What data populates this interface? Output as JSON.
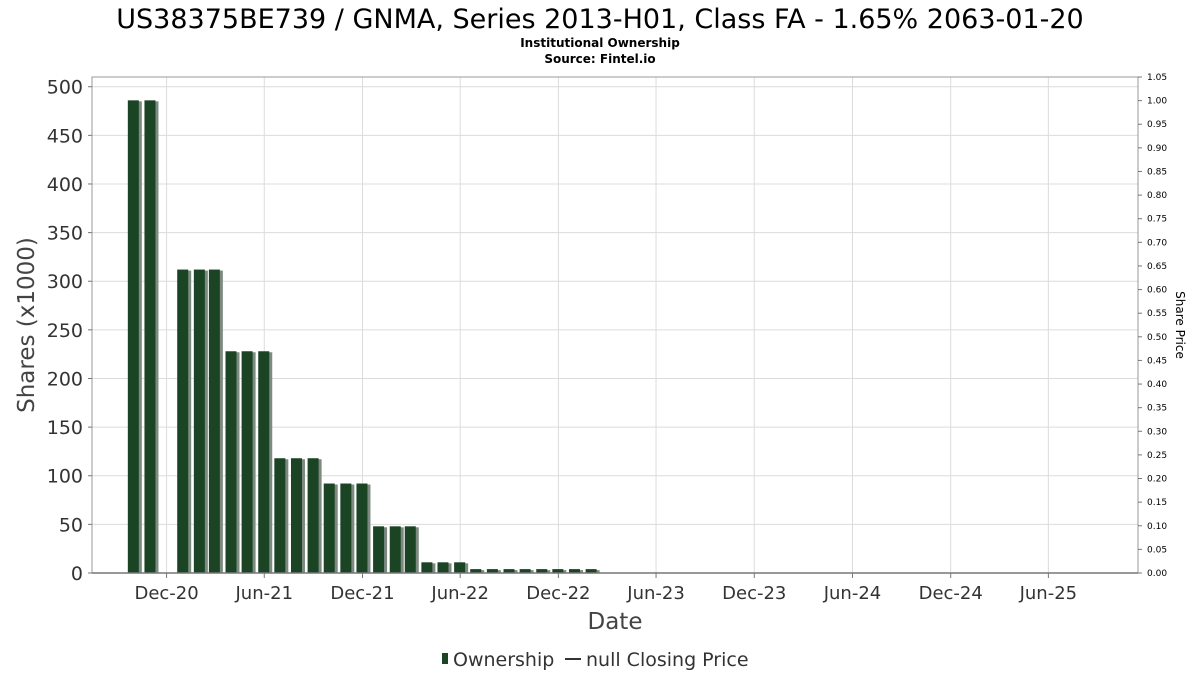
{
  "chart_data": {
    "type": "bar",
    "title": "US38375BE739 / GNMA, Series 2013-H01, Class FA - 1.65% 2063-01-20",
    "subtitle_lines": [
      "Institutional Ownership",
      "Source: Fintel.io"
    ],
    "xlabel": "Date",
    "ylabel": "Shares (x1000)",
    "y2label": "Share Price",
    "ylim": [
      0,
      510
    ],
    "y2lim": [
      0,
      1.05
    ],
    "yticks": [
      0,
      50,
      100,
      150,
      200,
      250,
      300,
      350,
      400,
      450,
      500
    ],
    "y2ticks": [
      "0.00",
      "0.05",
      "0.10",
      "0.15",
      "0.20",
      "0.25",
      "0.30",
      "0.35",
      "0.40",
      "0.45",
      "0.50",
      "0.55",
      "0.60",
      "0.65",
      "0.70",
      "0.75",
      "0.80",
      "0.85",
      "0.90",
      "0.95",
      "1.00",
      "1.05"
    ],
    "xlim": [
      "2020-07-15",
      "2025-11-15"
    ],
    "xticks": [
      {
        "label": "Dec-20",
        "date": "2020-12-01"
      },
      {
        "label": "Jun-21",
        "date": "2021-06-01"
      },
      {
        "label": "Dec-21",
        "date": "2021-12-01"
      },
      {
        "label": "Jun-22",
        "date": "2022-06-01"
      },
      {
        "label": "Dec-22",
        "date": "2022-12-01"
      },
      {
        "label": "Jun-23",
        "date": "2023-06-01"
      },
      {
        "label": "Dec-23",
        "date": "2023-12-01"
      },
      {
        "label": "Jun-24",
        "date": "2024-06-01"
      },
      {
        "label": "Dec-24",
        "date": "2024-12-01"
      },
      {
        "label": "Jun-25",
        "date": "2025-06-01"
      }
    ],
    "grid": true,
    "legend_position": "bottom",
    "series": [
      {
        "name": "Ownership",
        "color": "#1b4424",
        "points": [
          {
            "x": "2020-09-30",
            "y": 486
          },
          {
            "x": "2020-10-31",
            "y": 486
          },
          {
            "x": "2020-12-31",
            "y": 312
          },
          {
            "x": "2021-01-31",
            "y": 312
          },
          {
            "x": "2021-02-28",
            "y": 312
          },
          {
            "x": "2021-03-31",
            "y": 228
          },
          {
            "x": "2021-04-30",
            "y": 228
          },
          {
            "x": "2021-05-31",
            "y": 228
          },
          {
            "x": "2021-06-30",
            "y": 118
          },
          {
            "x": "2021-07-31",
            "y": 118
          },
          {
            "x": "2021-08-31",
            "y": 118
          },
          {
            "x": "2021-09-30",
            "y": 92
          },
          {
            "x": "2021-10-31",
            "y": 92
          },
          {
            "x": "2021-11-30",
            "y": 92
          },
          {
            "x": "2021-12-31",
            "y": 48
          },
          {
            "x": "2022-01-31",
            "y": 48
          },
          {
            "x": "2022-02-28",
            "y": 48
          },
          {
            "x": "2022-03-31",
            "y": 11
          },
          {
            "x": "2022-04-30",
            "y": 11
          },
          {
            "x": "2022-05-31",
            "y": 11
          },
          {
            "x": "2022-06-30",
            "y": 4
          },
          {
            "x": "2022-07-31",
            "y": 4
          },
          {
            "x": "2022-08-31",
            "y": 4
          },
          {
            "x": "2022-09-30",
            "y": 4
          },
          {
            "x": "2022-10-31",
            "y": 4
          },
          {
            "x": "2022-11-30",
            "y": 4
          },
          {
            "x": "2022-12-31",
            "y": 4
          },
          {
            "x": "2023-01-31",
            "y": 4
          }
        ]
      },
      {
        "name": "null Closing Price",
        "color": "#333333",
        "points": []
      }
    ]
  }
}
